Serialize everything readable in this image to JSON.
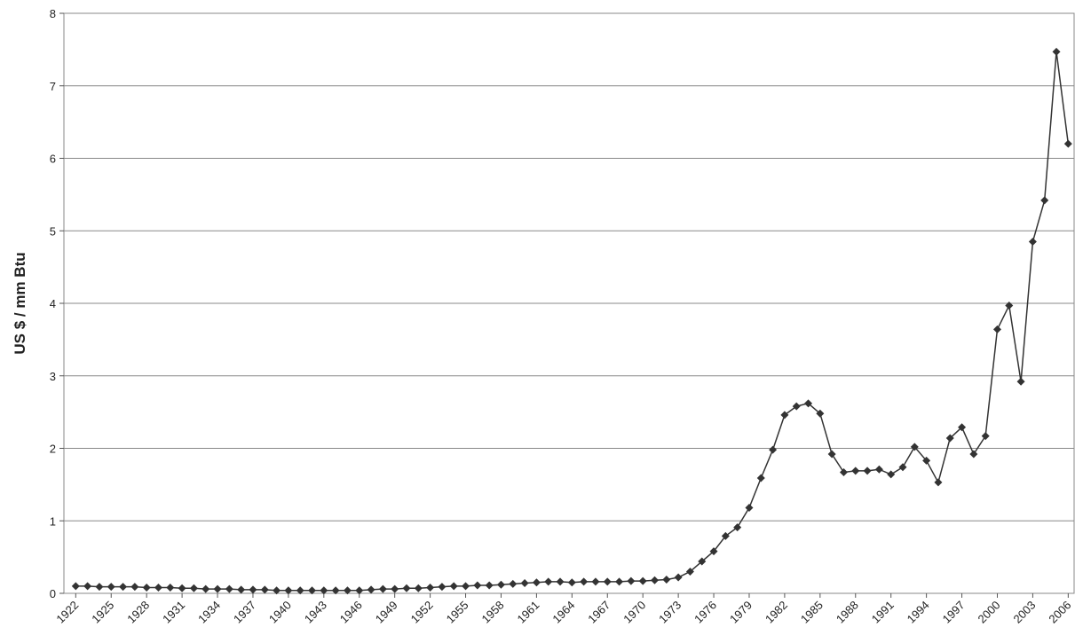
{
  "chart_data": {
    "type": "line",
    "ylabel": "US $ / mm Btu",
    "x": [
      1922,
      1923,
      1924,
      1925,
      1926,
      1927,
      1928,
      1929,
      1930,
      1931,
      1932,
      1933,
      1934,
      1935,
      1936,
      1937,
      1938,
      1939,
      1940,
      1941,
      1942,
      1943,
      1944,
      1945,
      1946,
      1947,
      1948,
      1949,
      1950,
      1951,
      1952,
      1953,
      1954,
      1955,
      1956,
      1957,
      1958,
      1959,
      1960,
      1961,
      1962,
      1963,
      1964,
      1965,
      1966,
      1967,
      1968,
      1969,
      1970,
      1971,
      1972,
      1973,
      1974,
      1975,
      1976,
      1977,
      1978,
      1979,
      1980,
      1981,
      1982,
      1983,
      1984,
      1985,
      1986,
      1987,
      1988,
      1989,
      1990,
      1991,
      1992,
      1993,
      1994,
      1995,
      1996,
      1997,
      1998,
      1999,
      2000,
      2001,
      2002,
      2003,
      2004,
      2005,
      2006
    ],
    "series": [
      {
        "color": "#333333",
        "values": [
          0.1,
          0.1,
          0.09,
          0.09,
          0.09,
          0.09,
          0.08,
          0.08,
          0.08,
          0.07,
          0.07,
          0.06,
          0.06,
          0.06,
          0.05,
          0.05,
          0.05,
          0.04,
          0.04,
          0.04,
          0.04,
          0.04,
          0.04,
          0.04,
          0.04,
          0.05,
          0.06,
          0.06,
          0.07,
          0.07,
          0.08,
          0.09,
          0.1,
          0.1,
          0.11,
          0.11,
          0.12,
          0.13,
          0.14,
          0.15,
          0.16,
          0.16,
          0.15,
          0.16,
          0.16,
          0.16,
          0.16,
          0.17,
          0.17,
          0.18,
          0.19,
          0.22,
          0.3,
          0.44,
          0.58,
          0.79,
          0.91,
          1.18,
          1.59,
          1.98,
          2.46,
          2.58,
          2.62,
          2.48,
          1.92,
          1.67,
          1.69,
          1.69,
          1.71,
          1.64,
          1.74,
          2.02,
          1.83,
          1.53,
          2.14,
          2.29,
          1.92,
          2.17,
          3.64,
          3.97,
          2.92,
          4.85,
          5.42,
          7.47,
          6.2
        ]
      }
    ],
    "xlim": [
      1921,
      2006.5
    ],
    "xticks": [
      1922,
      1925,
      1928,
      1931,
      1934,
      1937,
      1940,
      1943,
      1946,
      1949,
      1952,
      1955,
      1958,
      1961,
      1964,
      1967,
      1970,
      1973,
      1976,
      1979,
      1982,
      1985,
      1988,
      1991,
      1994,
      1997,
      2000,
      2003,
      2006
    ],
    "ylim": [
      0,
      8
    ],
    "yticks": [
      0,
      1,
      2,
      3,
      4,
      5,
      6,
      7,
      8
    ],
    "grid": true
  }
}
